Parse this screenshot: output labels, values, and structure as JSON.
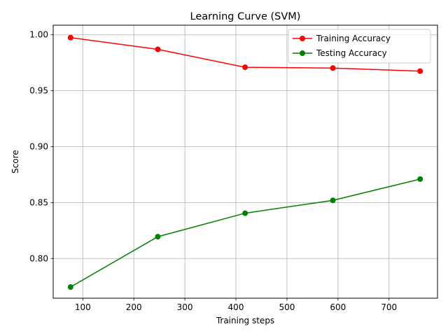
{
  "chart_data": {
    "type": "line",
    "title": "Learning Curve (SVM)",
    "xlabel": "Training steps",
    "ylabel": "Score",
    "x": [
      76,
      247,
      418,
      590,
      761
    ],
    "xlim": [
      42,
      795
    ],
    "ylim": [
      0.7645,
      1.0086
    ],
    "xticks": [
      100,
      200,
      300,
      400,
      500,
      600,
      700
    ],
    "yticks": [
      0.8,
      0.85,
      0.9,
      0.95,
      1.0
    ],
    "ytick_labels": [
      "0.80",
      "0.85",
      "0.90",
      "0.95",
      "1.00"
    ],
    "grid": true,
    "legend_position": "upper right",
    "series": [
      {
        "name": "Training Accuracy",
        "color": "#ff0000",
        "marker": "circle",
        "values": [
          0.9975,
          0.987,
          0.971,
          0.9703,
          0.9675
        ]
      },
      {
        "name": "Testing Accuracy",
        "color": "#008000",
        "marker": "circle",
        "values": [
          0.7745,
          0.8195,
          0.8405,
          0.852,
          0.871
        ]
      }
    ]
  }
}
